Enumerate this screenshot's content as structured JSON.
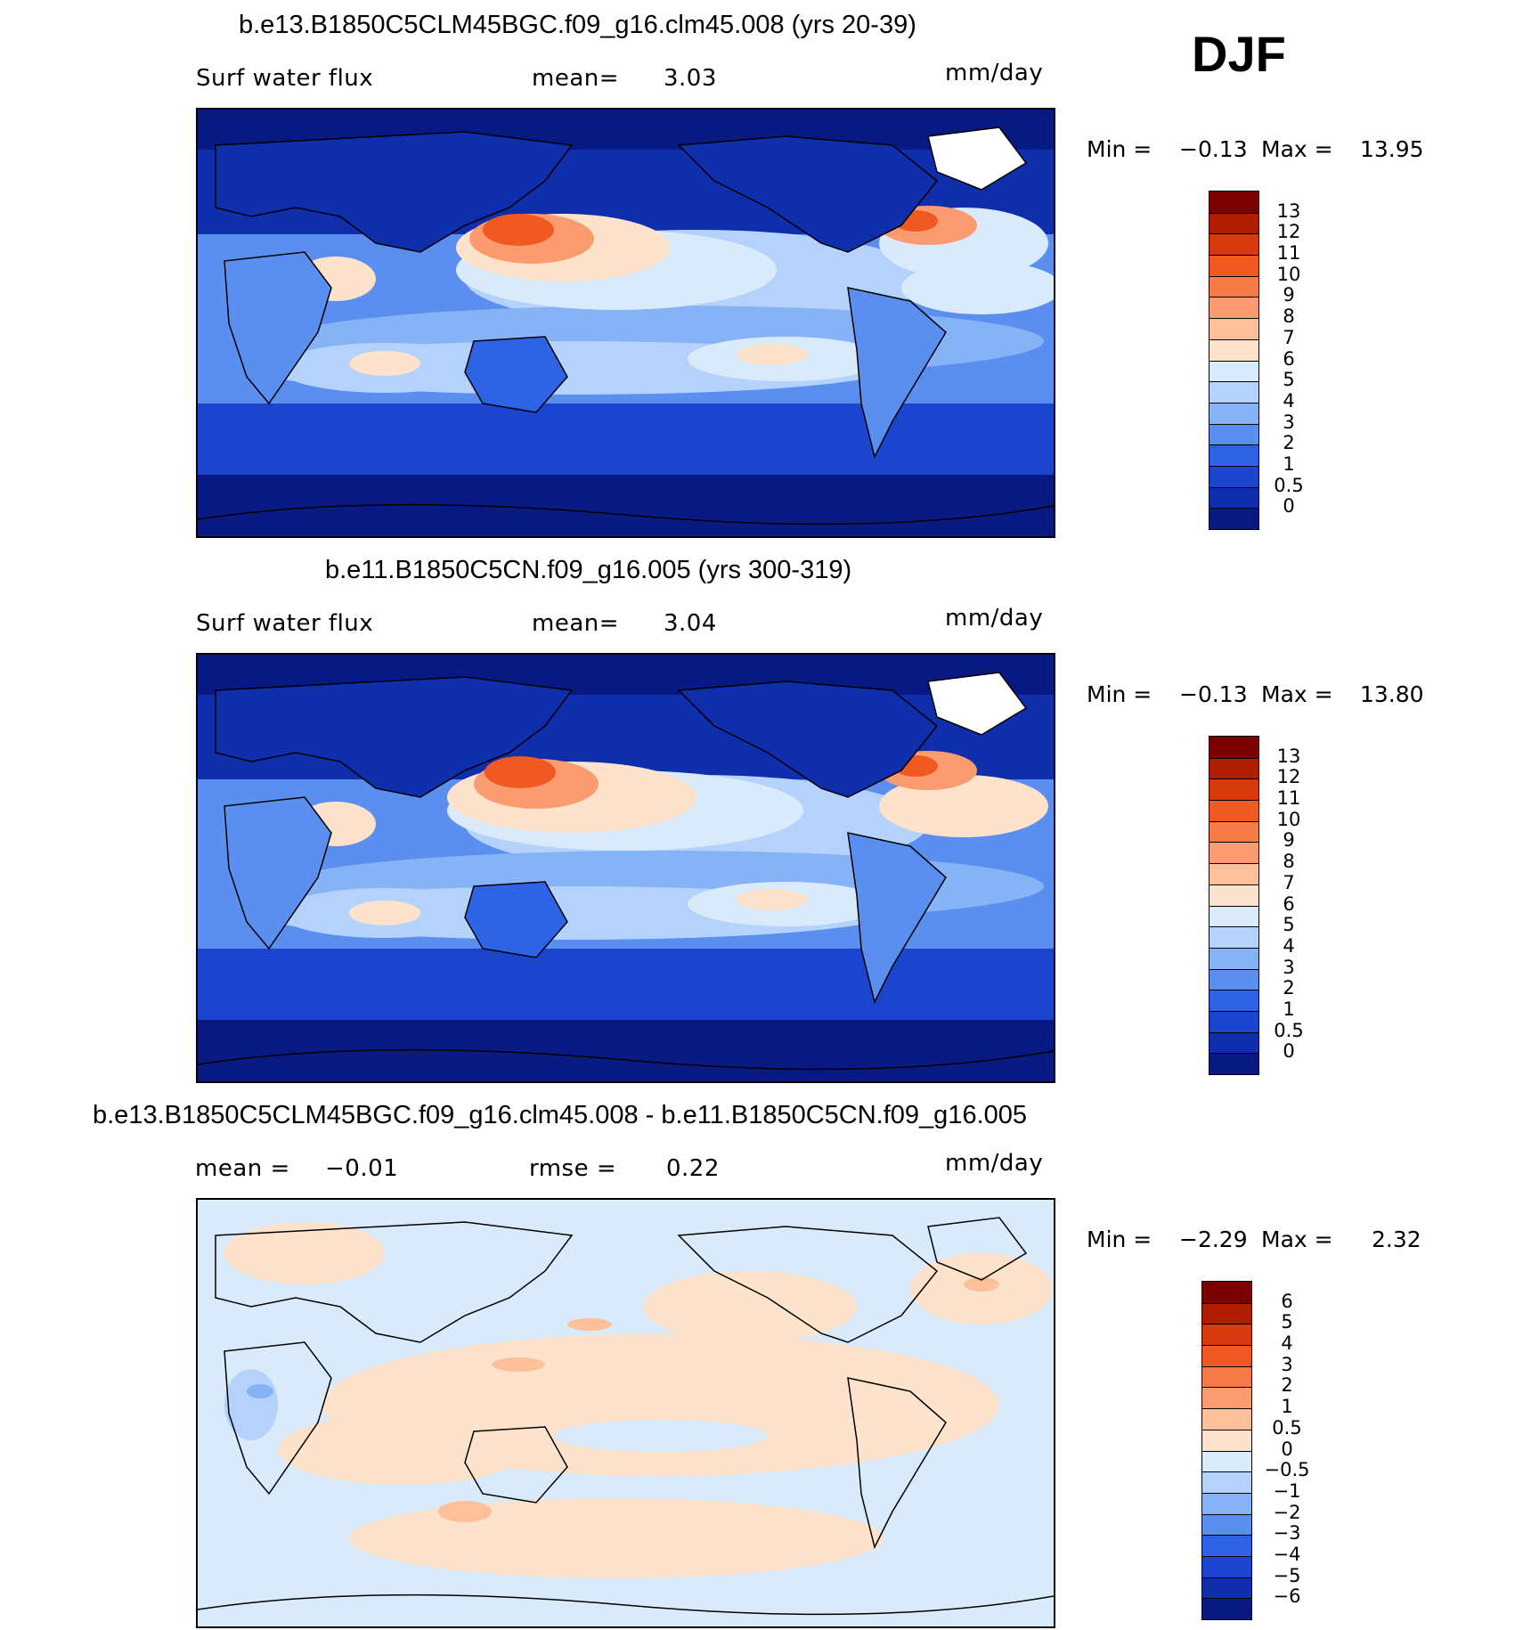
{
  "season": "DJF",
  "panels": [
    {
      "title": "b.e13.B1850C5CLM45BGC.f09_g16.clm45.008 (yrs 20-39)",
      "variable": "Surf water flux",
      "stat1_label": "mean=",
      "stat1_value": "3.03",
      "units": "mm/day",
      "min_label": "Min =",
      "min_value": "−0.13",
      "max_label": "Max =",
      "max_value": "13.95",
      "colorbar": {
        "labels": [
          "13",
          "12",
          "11",
          "10",
          "9",
          "8",
          "7",
          "6",
          "5",
          "4",
          "3",
          "2",
          "1",
          "0.5",
          "0"
        ],
        "colors": [
          "#7a0000",
          "#b01e00",
          "#d63a0c",
          "#f05a22",
          "#f77c48",
          "#fb9c70",
          "#fdc09a",
          "#fde3cc",
          "#d9ebfb",
          "#b4d2fb",
          "#86b2f6",
          "#5a8ff0",
          "#2f63e6",
          "#1b45cf",
          "#0f2eab",
          "#081a82"
        ]
      }
    },
    {
      "title": "b.e11.B1850C5CN.f09_g16.005 (yrs 300-319)",
      "variable": "Surf water flux",
      "stat1_label": "mean=",
      "stat1_value": "3.04",
      "units": "mm/day",
      "min_label": "Min =",
      "min_value": "−0.13",
      "max_label": "Max =",
      "max_value": "13.80",
      "colorbar": {
        "labels": [
          "13",
          "12",
          "11",
          "10",
          "9",
          "8",
          "7",
          "6",
          "5",
          "4",
          "3",
          "2",
          "1",
          "0.5",
          "0"
        ],
        "colors": [
          "#7a0000",
          "#b01e00",
          "#d63a0c",
          "#f05a22",
          "#f77c48",
          "#fb9c70",
          "#fdc09a",
          "#fde3cc",
          "#d9ebfb",
          "#b4d2fb",
          "#86b2f6",
          "#5a8ff0",
          "#2f63e6",
          "#1b45cf",
          "#0f2eab",
          "#081a82"
        ]
      }
    },
    {
      "title": "b.e13.B1850C5CLM45BGC.f09_g16.clm45.008 - b.e11.B1850C5CN.f09_g16.005",
      "stat1_label": "mean =",
      "stat1_value": "−0.01",
      "stat2_label": "rmse =",
      "stat2_value": "0.22",
      "units": "mm/day",
      "min_label": "Min =",
      "min_value": "−2.29",
      "max_label": "Max =",
      "max_value": "2.32",
      "colorbar": {
        "labels": [
          "6",
          "5",
          "4",
          "3",
          "2",
          "1",
          "0.5",
          "0",
          "−0.5",
          "−1",
          "−2",
          "−3",
          "−4",
          "−5",
          "−6"
        ],
        "colors": [
          "#7a0000",
          "#b01e00",
          "#d63a0c",
          "#f05a22",
          "#f77c48",
          "#fb9c70",
          "#fdc09a",
          "#fde3cc",
          "#d9ebfb",
          "#b4d2fb",
          "#86b2f6",
          "#5a8ff0",
          "#2f63e6",
          "#1b45cf",
          "#0f2eab",
          "#081a82"
        ]
      }
    }
  ]
}
